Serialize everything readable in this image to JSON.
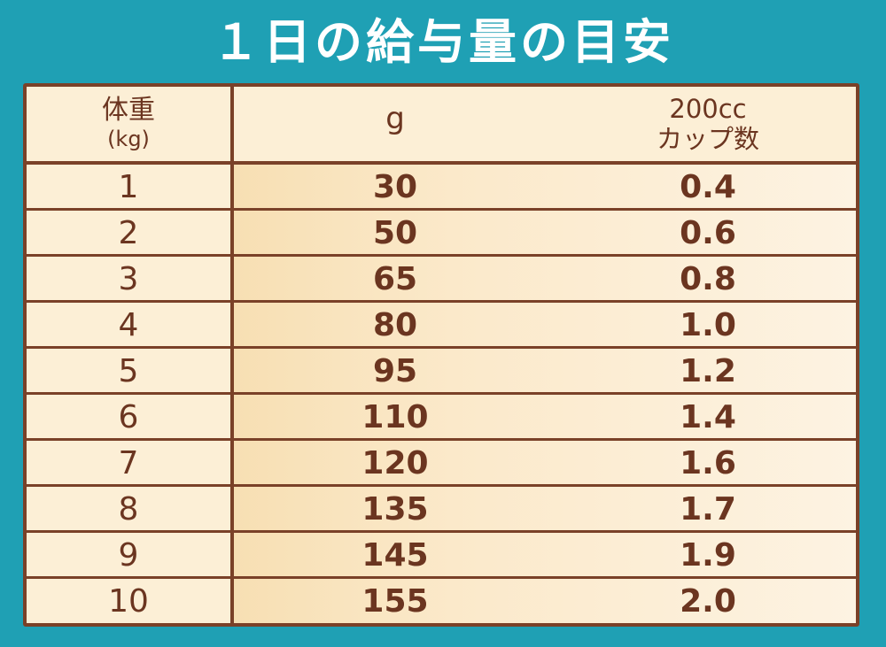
{
  "title": "１日の給与量の目安",
  "colors": {
    "background": "#1fa0b4",
    "table_fill": "#fcefd6",
    "border": "#7a4128",
    "text": "#6b3520",
    "title_text": "#ffffff"
  },
  "table": {
    "headers": {
      "weight": "体重",
      "weight_unit": "(kg)",
      "grams": "g",
      "cup_line1": "200cc",
      "cup_line2": "カップ数"
    },
    "rows": [
      {
        "weight": "1",
        "grams": "30",
        "cups": "0.4"
      },
      {
        "weight": "2",
        "grams": "50",
        "cups": "0.6"
      },
      {
        "weight": "3",
        "grams": "65",
        "cups": "0.8"
      },
      {
        "weight": "4",
        "grams": "80",
        "cups": "1.0"
      },
      {
        "weight": "5",
        "grams": "95",
        "cups": "1.2"
      },
      {
        "weight": "6",
        "grams": "110",
        "cups": "1.4"
      },
      {
        "weight": "7",
        "grams": "120",
        "cups": "1.6"
      },
      {
        "weight": "8",
        "grams": "135",
        "cups": "1.7"
      },
      {
        "weight": "9",
        "grams": "145",
        "cups": "1.9"
      },
      {
        "weight": "10",
        "grams": "155",
        "cups": "2.0"
      }
    ]
  }
}
